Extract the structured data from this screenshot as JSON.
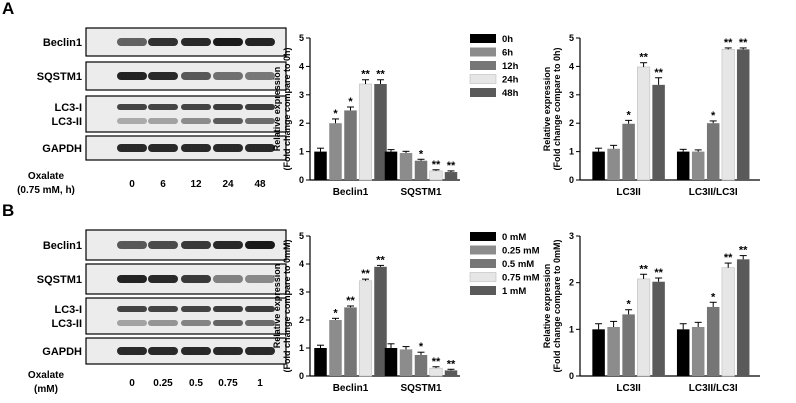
{
  "panels": [
    {
      "letter": "A",
      "blot": {
        "rows": [
          "Beclin1",
          "SQSTM1",
          "LC3-I",
          "LC3-II",
          "GAPDH"
        ],
        "condition_label": [
          "Oxalate",
          "(0.75 mM, h)"
        ],
        "conditions": [
          "0",
          "6",
          "12",
          "24",
          "48"
        ]
      }
    },
    {
      "letter": "B",
      "blot": {
        "rows": [
          "Beclin1",
          "SQSTM1",
          "LC3-I",
          "LC3-II",
          "GAPDH"
        ],
        "condition_label": [
          "Oxalate",
          "(mM)"
        ],
        "conditions": [
          "0",
          "0.25",
          "0.5",
          "0.75",
          "1"
        ]
      }
    }
  ],
  "colors": [
    "#000000",
    "#8c8c8c",
    "#767676",
    "#e6e6e6",
    "#5a5a5a"
  ],
  "chart_data": [
    {
      "type": "bar",
      "panel": "A",
      "ylabel": [
        "Relative expression",
        "(Fold change compare to 0h)"
      ],
      "ylim": [
        0,
        5
      ],
      "yticks": [
        0,
        1,
        2,
        3,
        4,
        5
      ],
      "categories": [
        "Beclin1",
        "SQSTM1"
      ],
      "legend": [
        "0h",
        "6h",
        "12h",
        "24h",
        "48h"
      ],
      "legend_position": "top-right",
      "series": [
        {
          "name": "0h",
          "values": [
            1.0,
            1.0
          ],
          "errors": [
            0.12,
            0.07
          ],
          "sig": [
            "",
            ""
          ]
        },
        {
          "name": "6h",
          "values": [
            2.0,
            0.95
          ],
          "errors": [
            0.15,
            0.06
          ],
          "sig": [
            "*",
            ""
          ]
        },
        {
          "name": "12h",
          "values": [
            2.45,
            0.68
          ],
          "errors": [
            0.12,
            0.05
          ],
          "sig": [
            "*",
            "*"
          ]
        },
        {
          "name": "24h",
          "values": [
            3.38,
            0.32
          ],
          "errors": [
            0.15,
            0.04
          ],
          "sig": [
            "**",
            "**"
          ]
        },
        {
          "name": "48h",
          "values": [
            3.38,
            0.28
          ],
          "errors": [
            0.15,
            0.04
          ],
          "sig": [
            "**",
            "**"
          ]
        }
      ]
    },
    {
      "type": "bar",
      "panel": "A",
      "ylabel": [
        "Relative expression",
        "(Fold change compare to 0h)"
      ],
      "ylim": [
        0,
        5
      ],
      "yticks": [
        0,
        1,
        2,
        3,
        4,
        5
      ],
      "categories": [
        "LC3II",
        "LC3II/LC3I"
      ],
      "series": [
        {
          "name": "0h",
          "values": [
            1.0,
            1.0
          ],
          "errors": [
            0.12,
            0.08
          ],
          "sig": [
            "",
            ""
          ]
        },
        {
          "name": "6h",
          "values": [
            1.1,
            1.0
          ],
          "errors": [
            0.12,
            0.06
          ],
          "sig": [
            "",
            ""
          ]
        },
        {
          "name": "12h",
          "values": [
            1.98,
            2.0
          ],
          "errors": [
            0.12,
            0.08
          ],
          "sig": [
            "*",
            "*"
          ]
        },
        {
          "name": "24h",
          "values": [
            3.98,
            4.6
          ],
          "errors": [
            0.15,
            0.05
          ],
          "sig": [
            "**",
            "**"
          ]
        },
        {
          "name": "48h",
          "values": [
            3.35,
            4.6
          ],
          "errors": [
            0.25,
            0.05
          ],
          "sig": [
            "**",
            "**"
          ]
        }
      ]
    },
    {
      "type": "bar",
      "panel": "B",
      "ylabel": [
        "Relative expression",
        "(Fold change compare to 0mM)"
      ],
      "ylim": [
        0,
        5
      ],
      "yticks": [
        0,
        1,
        2,
        3,
        4,
        5
      ],
      "categories": [
        "Beclin1",
        "SQSTM1"
      ],
      "legend": [
        "0 mM",
        "0.25 mM",
        "0.5 mM",
        "0.75 mM",
        "1 mM"
      ],
      "legend_position": "top-right",
      "series": [
        {
          "name": "0 mM",
          "values": [
            1.0,
            1.0
          ],
          "errors": [
            0.1,
            0.15
          ],
          "sig": [
            "",
            ""
          ]
        },
        {
          "name": "0.25 mM",
          "values": [
            2.0,
            0.95
          ],
          "errors": [
            0.06,
            0.1
          ],
          "sig": [
            "*",
            ""
          ]
        },
        {
          "name": "0.5 mM",
          "values": [
            2.45,
            0.75
          ],
          "errors": [
            0.05,
            0.1
          ],
          "sig": [
            "**",
            "*"
          ]
        },
        {
          "name": "0.75 mM",
          "values": [
            3.4,
            0.28
          ],
          "errors": [
            0.06,
            0.05
          ],
          "sig": [
            "**",
            "**"
          ]
        },
        {
          "name": "1 mM",
          "values": [
            3.9,
            0.2
          ],
          "errors": [
            0.05,
            0.04
          ],
          "sig": [
            "**",
            "**"
          ]
        }
      ]
    },
    {
      "type": "bar",
      "panel": "B",
      "ylabel": [
        "Relative expression",
        "(Fold change compare to 0mM)"
      ],
      "ylim": [
        0,
        3
      ],
      "yticks": [
        0,
        1,
        2,
        3
      ],
      "categories": [
        "LC3II",
        "LC3II/LC3I"
      ],
      "series": [
        {
          "name": "0 mM",
          "values": [
            1.0,
            1.0
          ],
          "errors": [
            0.12,
            0.12
          ],
          "sig": [
            "",
            ""
          ]
        },
        {
          "name": "0.25 mM",
          "values": [
            1.05,
            1.05
          ],
          "errors": [
            0.12,
            0.1
          ],
          "sig": [
            "",
            ""
          ]
        },
        {
          "name": "0.5 mM",
          "values": [
            1.32,
            1.48
          ],
          "errors": [
            0.1,
            0.1
          ],
          "sig": [
            "*",
            "*"
          ]
        },
        {
          "name": "0.75 mM",
          "values": [
            2.08,
            2.32
          ],
          "errors": [
            0.1,
            0.1
          ],
          "sig": [
            "**",
            "**"
          ]
        },
        {
          "name": "1 mM",
          "values": [
            2.02,
            2.5
          ],
          "errors": [
            0.08,
            0.08
          ],
          "sig": [
            "**",
            "**"
          ]
        }
      ]
    }
  ]
}
